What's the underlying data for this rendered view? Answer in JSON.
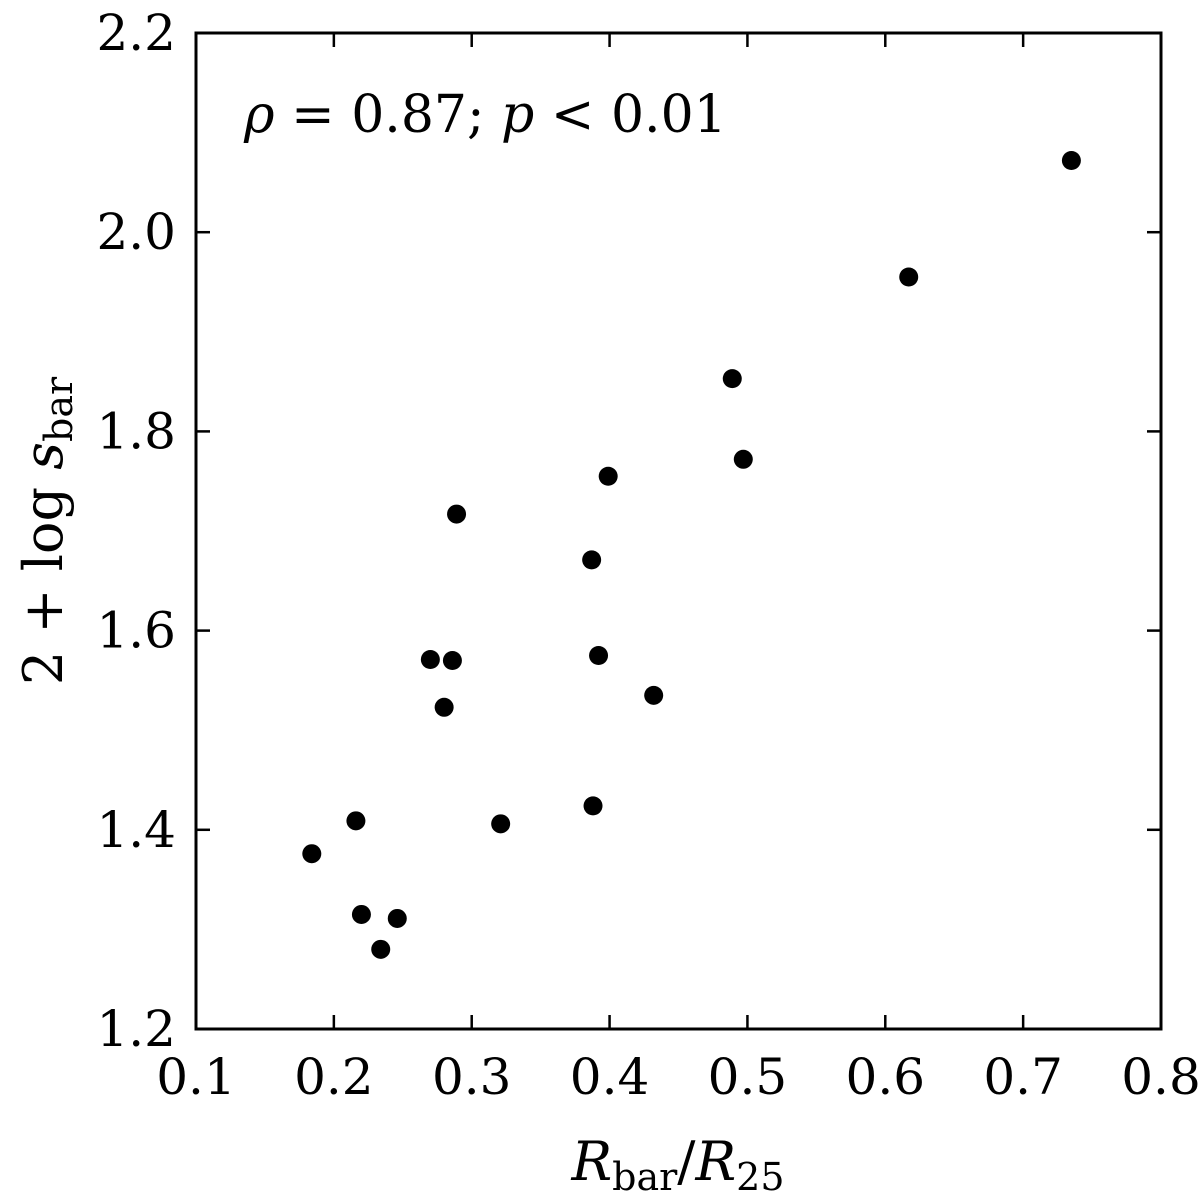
{
  "chart_data": {
    "type": "scatter",
    "xlim": [
      0.1,
      0.8
    ],
    "ylim": [
      1.2,
      2.2
    ],
    "x_ticks": [
      "0.1",
      "0.2",
      "0.3",
      "0.4",
      "0.5",
      "0.6",
      "0.7",
      "0.8"
    ],
    "y_ticks": [
      "1.2",
      "1.4",
      "1.6",
      "1.8",
      "2.0",
      "2.2"
    ],
    "xlabel": {
      "main": "R",
      "sub1": "bar",
      "sep": "/",
      "main2": "R",
      "sub2": "25"
    },
    "ylabel": {
      "prefix": "2 + log ",
      "var": "s",
      "sub": "bar"
    },
    "annotation": {
      "rho": "ρ",
      "eq": " = 0.87; ",
      "p": "p",
      "lt": " < 0.01"
    },
    "grid": false,
    "marker_color": "#000000",
    "points": [
      {
        "x": 0.184,
        "y": 1.376
      },
      {
        "x": 0.216,
        "y": 1.409
      },
      {
        "x": 0.22,
        "y": 1.315
      },
      {
        "x": 0.234,
        "y": 1.28
      },
      {
        "x": 0.246,
        "y": 1.311
      },
      {
        "x": 0.27,
        "y": 1.571
      },
      {
        "x": 0.28,
        "y": 1.523
      },
      {
        "x": 0.286,
        "y": 1.57
      },
      {
        "x": 0.289,
        "y": 1.717
      },
      {
        "x": 0.321,
        "y": 1.406
      },
      {
        "x": 0.387,
        "y": 1.671
      },
      {
        "x": 0.388,
        "y": 1.424
      },
      {
        "x": 0.392,
        "y": 1.575
      },
      {
        "x": 0.399,
        "y": 1.755
      },
      {
        "x": 0.432,
        "y": 1.535
      },
      {
        "x": 0.489,
        "y": 1.853
      },
      {
        "x": 0.497,
        "y": 1.772
      },
      {
        "x": 0.617,
        "y": 1.955
      },
      {
        "x": 0.735,
        "y": 2.072
      }
    ]
  }
}
